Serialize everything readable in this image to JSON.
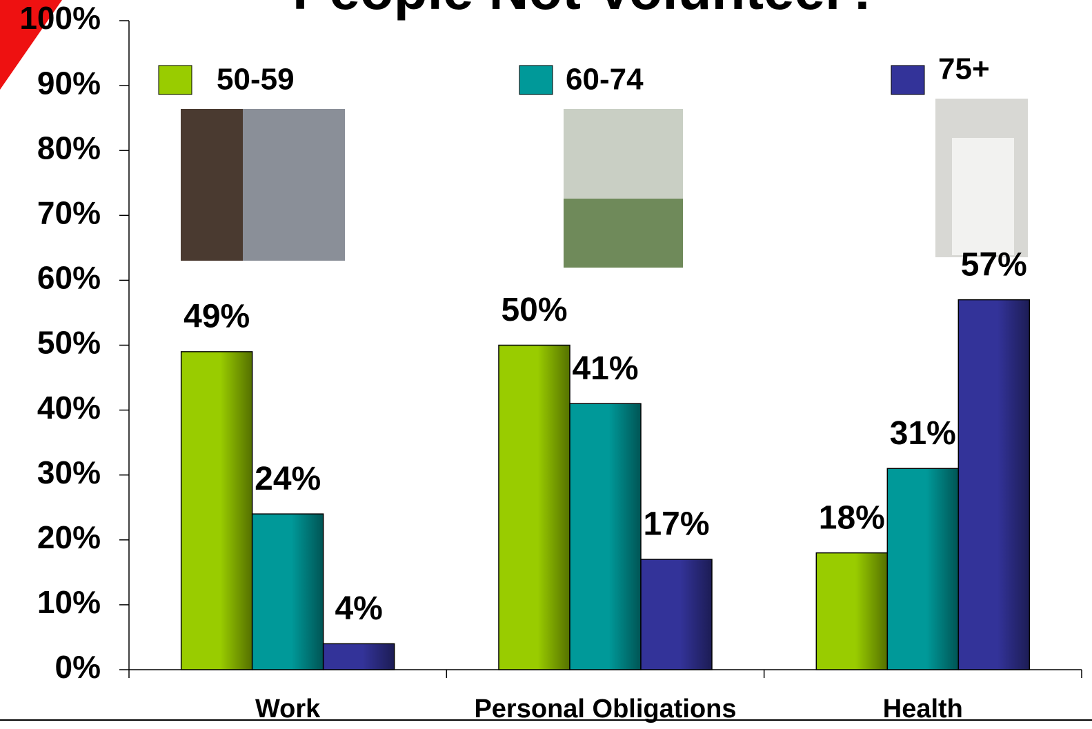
{
  "chart_data": {
    "type": "bar",
    "title": "People Not Volunteer?",
    "categories": [
      "Work",
      "Personal Obligations",
      "Health"
    ],
    "series": [
      {
        "name": "50-59",
        "color": "#99cc00",
        "values": [
          49,
          50,
          18
        ],
        "value_labels": [
          "49%",
          "50%",
          "18%"
        ]
      },
      {
        "name": "60-74",
        "color": "#009999",
        "values": [
          24,
          41,
          31
        ],
        "value_labels": [
          "24%",
          "41%",
          "31%"
        ]
      },
      {
        "name": "75+",
        "color": "#333399",
        "values": [
          4,
          17,
          57
        ],
        "value_labels": [
          "4%",
          "17%",
          "57%"
        ]
      }
    ],
    "ylim": [
      0,
      100
    ],
    "yticks": [
      {
        "value": 0,
        "label": "0%"
      },
      {
        "value": 10,
        "label": "10%"
      },
      {
        "value": 20,
        "label": "20%"
      },
      {
        "value": 30,
        "label": "30%"
      },
      {
        "value": 40,
        "label": "40%"
      },
      {
        "value": 50,
        "label": "50%"
      },
      {
        "value": 60,
        "label": "60%"
      },
      {
        "value": 70,
        "label": "70%"
      },
      {
        "value": 80,
        "label": "80%"
      },
      {
        "value": 90,
        "label": "90%"
      },
      {
        "value": 100,
        "label": "100%"
      }
    ]
  }
}
